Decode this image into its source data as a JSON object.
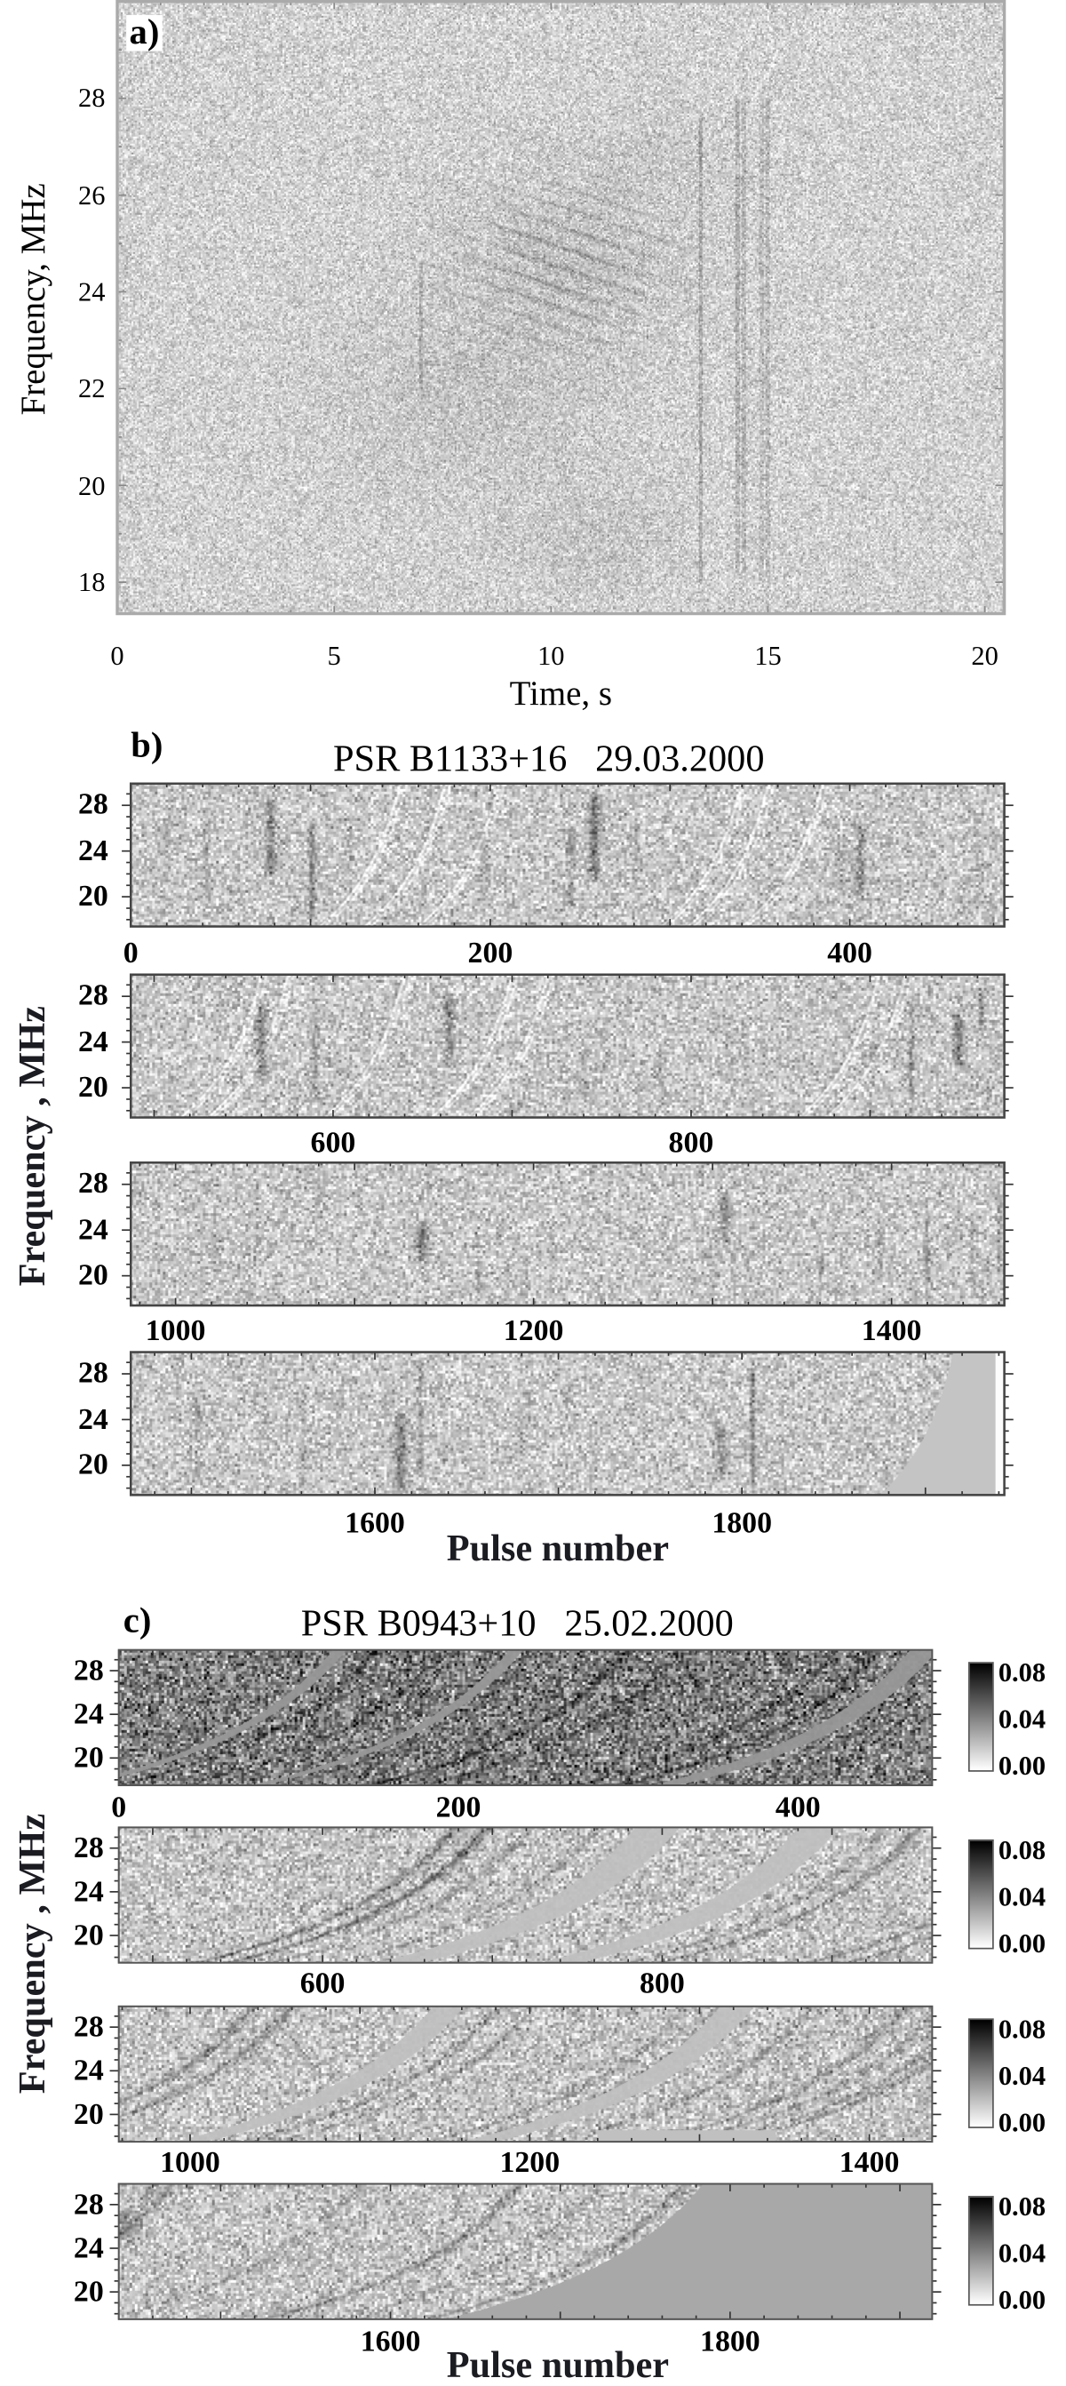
{
  "chart_data": [
    {
      "panel_label": "a)",
      "type": "heatmap",
      "colormap": "grayscale",
      "xlabel": "Time, s",
      "ylabel": "Frequency, MHz",
      "xlim": [
        0,
        20.45
      ],
      "ylim": [
        17.35,
        30.0
      ],
      "xticks": [
        "0",
        "5",
        "10",
        "15",
        "20"
      ],
      "yticks": [
        "18",
        "20",
        "22",
        "24",
        "26",
        "28"
      ],
      "grid": false
    },
    {
      "panel_label": "b)",
      "type": "heatmap",
      "colormap": "grayscale",
      "title": "PSR B1133+16   29.03.2000",
      "xlabel": "Pulse number",
      "ylabel": "Frequency , MHz",
      "ylim": [
        17.4,
        29.9
      ],
      "yticks": [
        "20",
        "24",
        "28"
      ],
      "strips": [
        {
          "xlim": [
            0,
            486
          ],
          "xticks": [
            "0",
            "200",
            "400"
          ]
        },
        {
          "xlim": [
            487,
            975
          ],
          "xticks": [
            "600",
            "800"
          ]
        },
        {
          "xlim": [
            975,
            1463
          ],
          "xticks": [
            "1000",
            "1200",
            "1400"
          ]
        },
        {
          "xlim": [
            1467,
            1943
          ],
          "xticks": [
            "1600",
            "1800"
          ]
        }
      ],
      "grid": false
    },
    {
      "panel_label": "c)",
      "type": "heatmap",
      "colormap": "grayscale",
      "title": "PSR B0943+10   25.02.2000",
      "xlabel": "Pulse number",
      "ylabel": "Frequency , MHz",
      "ylim": [
        17.5,
        29.9
      ],
      "yticks": [
        "20",
        "24",
        "28"
      ],
      "strips": [
        {
          "xlim": [
            0,
            479
          ],
          "xticks": [
            "0",
            "200",
            "400"
          ]
        },
        {
          "xlim": [
            480,
            959
          ],
          "xticks": [
            "600",
            "800"
          ]
        },
        {
          "xlim": [
            958,
            1437
          ],
          "xticks": [
            "1000",
            "1200",
            "1400"
          ]
        },
        {
          "xlim": [
            1440,
            1919
          ],
          "xticks": [
            "1600",
            "1800"
          ]
        }
      ],
      "colorbar": {
        "range": [
          0,
          0.08
        ],
        "ticks": [
          "0.08",
          "0.04",
          "0.00"
        ]
      },
      "grid": false
    }
  ]
}
